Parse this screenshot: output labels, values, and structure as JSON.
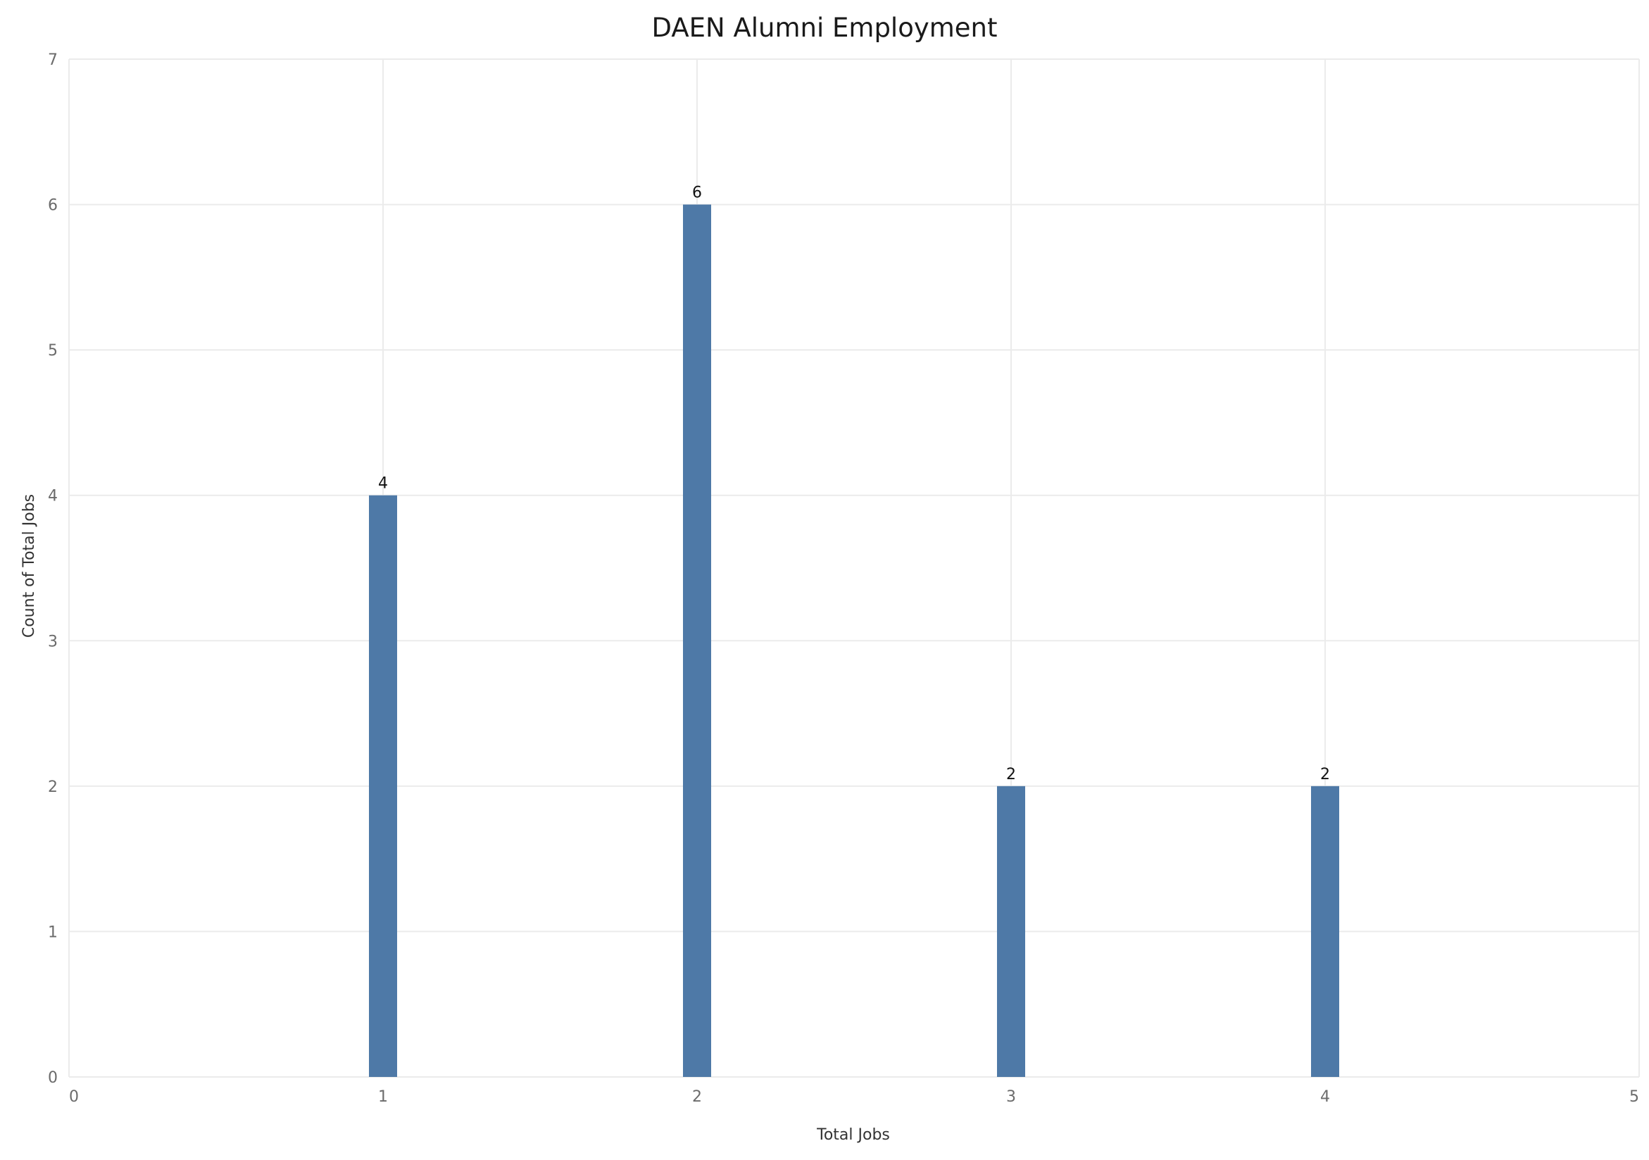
{
  "chart_data": {
    "type": "bar",
    "title": "DAEN Alumni Employment",
    "xlabel": "Total Jobs",
    "ylabel": "Count of Total Jobs",
    "x": [
      1,
      2,
      3,
      4
    ],
    "values": [
      4,
      6,
      2,
      2
    ],
    "data_labels": [
      "4",
      "6",
      "2",
      "2"
    ],
    "xlim": [
      0,
      5
    ],
    "ylim": [
      0,
      7
    ],
    "x_ticks": [
      "0",
      "1",
      "2",
      "3",
      "4",
      "5"
    ],
    "y_ticks": [
      "0",
      "1",
      "2",
      "3",
      "4",
      "5",
      "6",
      "7"
    ],
    "grid": true,
    "legend": "none",
    "bar_color": "#4e79a7",
    "grid_color": "#ebebeb"
  }
}
